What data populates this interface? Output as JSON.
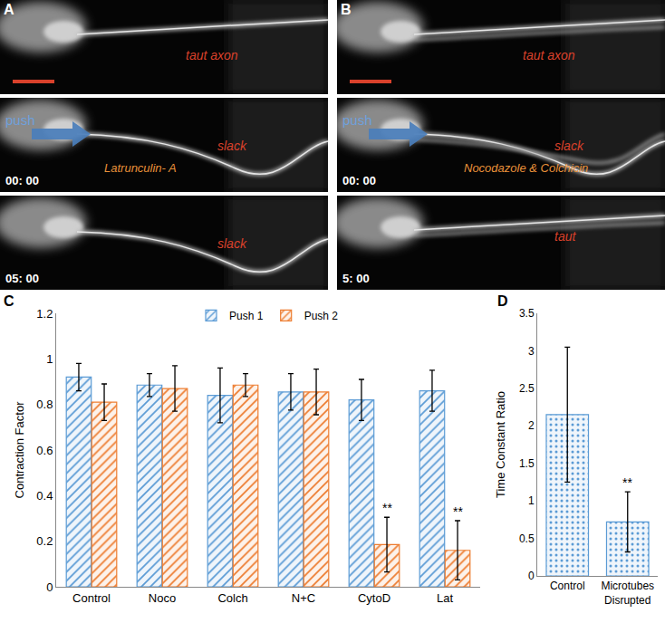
{
  "image_panels": [
    {
      "label": "A",
      "frames": [
        {
          "state": "taut axon"
        },
        {
          "time": "00: 00",
          "push": "push",
          "drug": "Latrunculin- A",
          "state": "slack"
        },
        {
          "time": "05: 00",
          "state": "slack"
        }
      ]
    },
    {
      "label": "B",
      "frames": [
        {
          "state": "taut axon"
        },
        {
          "time": "00: 00",
          "push": "push",
          "drug": "Nocodazole & Colchicin",
          "state": "slack"
        },
        {
          "time": "5: 00",
          "state": "taut"
        }
      ]
    }
  ],
  "chart_data": [
    {
      "panel": "C",
      "type": "bar",
      "categories": [
        "Control",
        "Noco",
        "Colch",
        "N+C",
        "CytoD",
        "Lat"
      ],
      "series": [
        {
          "name": "Push 1",
          "color": "#5b9bd5",
          "values": [
            0.92,
            0.885,
            0.84,
            0.855,
            0.82,
            0.86
          ],
          "error": [
            0.06,
            0.05,
            0.12,
            0.08,
            0.09,
            0.09
          ]
        },
        {
          "name": "Push 2",
          "color": "#ed7d31",
          "values": [
            0.81,
            0.87,
            0.885,
            0.855,
            0.185,
            0.16
          ],
          "error": [
            0.08,
            0.1,
            0.05,
            0.1,
            0.12,
            0.13
          ]
        }
      ],
      "ylabel": "Contraction Factor",
      "ylim": [
        0,
        1.2
      ],
      "yticks": [
        0,
        0.2,
        0.4,
        0.6,
        0.8,
        1,
        1.2
      ],
      "grid": false,
      "legend": "top",
      "annotations": [
        {
          "text": "**",
          "category": "CytoD",
          "series": "Push 2"
        },
        {
          "text": "**",
          "category": "Lat",
          "series": "Push 2"
        }
      ]
    },
    {
      "panel": "D",
      "type": "bar",
      "categories": [
        "Control",
        "Microtubes Disrupted"
      ],
      "values": [
        2.15,
        0.72
      ],
      "error": [
        0.9,
        0.4
      ],
      "color": "#5b9bd5",
      "ylabel": "Time Constant Ratio",
      "ylim": [
        0,
        3.5
      ],
      "yticks": [
        0,
        0.5,
        1,
        1.5,
        2,
        2.5,
        3,
        3.5
      ],
      "grid": false,
      "annotations": [
        {
          "text": "**",
          "category": "Microtubes Disrupted"
        }
      ]
    }
  ]
}
